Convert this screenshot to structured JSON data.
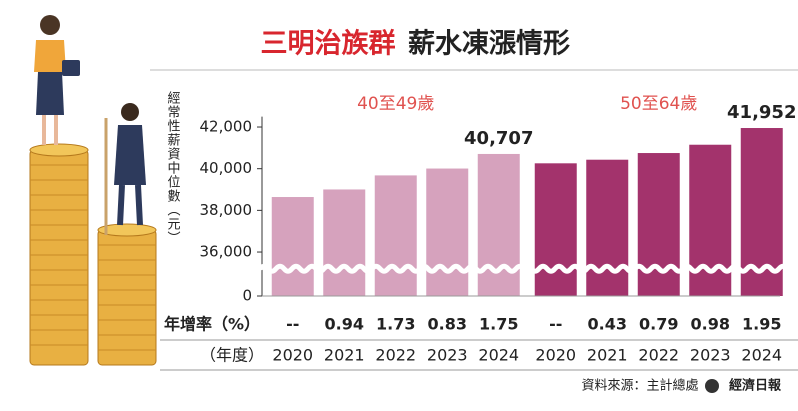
{
  "chart_data": {
    "type": "bar",
    "title_highlight": "三明治族群",
    "title": "薪水凍漲情形",
    "ylabel": "經常性薪資中位數（元）",
    "xlabel": "（年度）",
    "growth_label": "年增率（%）",
    "categories": [
      "2020",
      "2021",
      "2022",
      "2023",
      "2024"
    ],
    "ylim": [
      0,
      42500
    ],
    "ybreak": [
      0,
      35200
    ],
    "yticks": [
      0,
      {
        "value": 36000,
        "label": "36,000"
      },
      {
        "value": 38000,
        "label": "38,000"
      },
      {
        "value": 40000,
        "label": "40,000"
      },
      {
        "value": 42000,
        "label": "42,000"
      }
    ],
    "series": [
      {
        "name": "40至49歲",
        "color": "#d6a2bd",
        "values": [
          38640,
          39003,
          39678,
          40007,
          40707
        ],
        "value_labels": [
          null,
          null,
          null,
          null,
          "40,707"
        ],
        "growth": [
          "--",
          "0.94",
          "1.73",
          "0.83",
          "1.75"
        ]
      },
      {
        "name": "50至64歲",
        "color": "#a3336c",
        "values": [
          40258,
          40431,
          40751,
          41150,
          41952
        ],
        "value_labels": [
          null,
          null,
          null,
          null,
          "41,952"
        ],
        "growth": [
          "--",
          "0.43",
          "0.79",
          "0.98",
          "1.95"
        ]
      }
    ],
    "source": "資料來源：主計總處",
    "publisher": "經濟日報"
  }
}
